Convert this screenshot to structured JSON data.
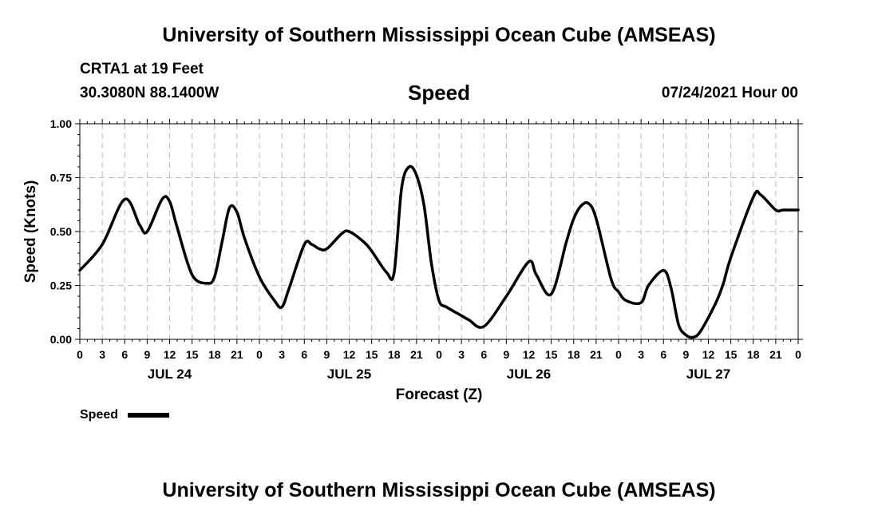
{
  "header": {
    "title": "University of Southern Mississippi Ocean Cube (AMSEAS)",
    "station": "CRTA1 at 19 Feet",
    "coords": "30.3080N  88.1400W",
    "variable": "Speed",
    "datetime": "07/24/2021 Hour 00"
  },
  "footer": {
    "title": "University of Southern Mississippi Ocean Cube (AMSEAS)"
  },
  "colors": {
    "line": "#000000",
    "grid": "#bbbbbb"
  },
  "chart_data": {
    "type": "line",
    "title": "Speed",
    "xlabel": "Forecast (Z)",
    "ylabel": "Speed (Knots)",
    "ylim": [
      0,
      1
    ],
    "yticks": [
      "0.00",
      "0.25",
      "0.50",
      "0.75",
      "1.00"
    ],
    "xlim_hours": [
      0,
      96
    ],
    "xtick_labels": [
      "0",
      "3",
      "6",
      "9",
      "12",
      "15",
      "18",
      "21",
      "0",
      "3",
      "6",
      "9",
      "12",
      "15",
      "18",
      "21",
      "0",
      "3",
      "6",
      "9",
      "12",
      "15",
      "18",
      "21",
      "0",
      "3",
      "6",
      "9",
      "12",
      "15",
      "18",
      "21",
      "0"
    ],
    "day_labels": [
      "JUL 24",
      "JUL 25",
      "JUL 26",
      "JUL 27"
    ],
    "legend": [
      "Speed"
    ],
    "series": [
      {
        "name": "Speed",
        "x_hours": [
          0,
          3,
          6,
          8,
          9,
          11,
          12,
          13,
          15,
          17,
          18,
          19,
          20,
          21,
          22,
          24,
          26,
          27,
          28,
          30,
          31,
          32,
          33,
          35,
          36,
          38,
          39,
          41,
          42,
          43,
          44,
          45,
          46,
          47,
          48,
          49,
          51,
          52,
          54,
          57,
          60,
          61,
          63,
          65,
          66,
          67,
          68,
          69,
          71,
          72,
          73,
          75,
          76,
          78,
          79,
          80,
          81,
          82,
          83,
          85,
          86,
          87,
          90,
          91,
          93,
          94,
          96
        ],
        "values": [
          0.32,
          0.44,
          0.65,
          0.53,
          0.5,
          0.65,
          0.64,
          0.52,
          0.3,
          0.26,
          0.29,
          0.45,
          0.61,
          0.59,
          0.47,
          0.29,
          0.18,
          0.15,
          0.24,
          0.44,
          0.44,
          0.42,
          0.42,
          0.49,
          0.5,
          0.45,
          0.41,
          0.31,
          0.31,
          0.7,
          0.8,
          0.76,
          0.62,
          0.35,
          0.18,
          0.15,
          0.11,
          0.09,
          0.06,
          0.2,
          0.36,
          0.3,
          0.21,
          0.45,
          0.56,
          0.62,
          0.63,
          0.56,
          0.28,
          0.22,
          0.18,
          0.17,
          0.25,
          0.32,
          0.24,
          0.07,
          0.02,
          0.01,
          0.04,
          0.17,
          0.26,
          0.38,
          0.66,
          0.67,
          0.6,
          0.6,
          0.6
        ]
      }
    ]
  }
}
